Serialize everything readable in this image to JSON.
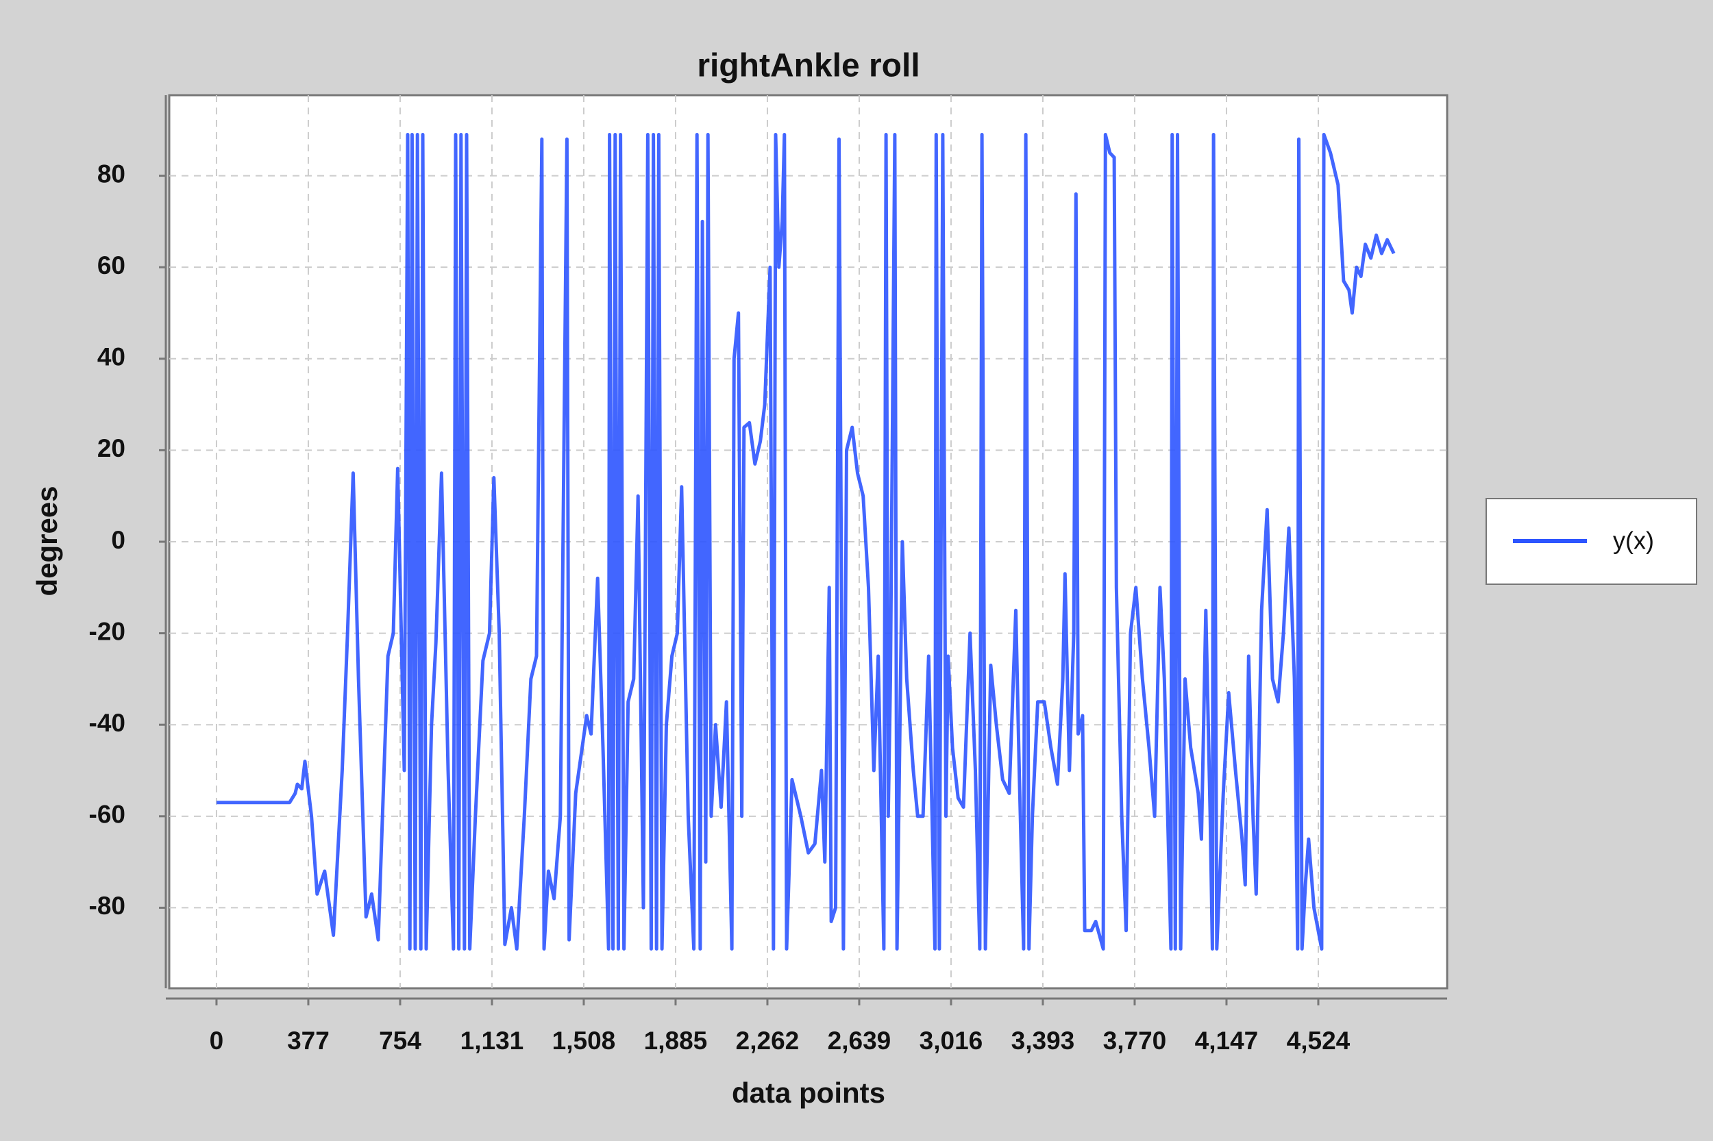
{
  "chart_data": {
    "type": "line",
    "title": "rightAnkle roll",
    "x_label": "data points",
    "y_label": "degrees",
    "xlim": [
      -194,
      5053
    ],
    "ylim": [
      -97.6,
      97.6
    ],
    "xticks": [
      0,
      377,
      754,
      {
        "value": 1131,
        "label": "1,131"
      },
      {
        "value": 1508,
        "label": "1,508"
      },
      {
        "value": 1885,
        "label": "1,885"
      },
      {
        "value": 2262,
        "label": "2,262"
      },
      {
        "value": 2639,
        "label": "2,639"
      },
      {
        "value": 3016,
        "label": "3,016"
      },
      {
        "value": 3393,
        "label": "3,393"
      },
      {
        "value": 3770,
        "label": "3,770"
      },
      {
        "value": 4147,
        "label": "4,147"
      },
      {
        "value": 4524,
        "label": "4,524"
      }
    ],
    "yticks": [
      -80,
      -60,
      -40,
      -20,
      0,
      20,
      40,
      60,
      80
    ],
    "grid": true,
    "legend": "right",
    "x": [
      0,
      300,
      323,
      332,
      350,
      363,
      390,
      413,
      444,
      480,
      516,
      538,
      561,
      583,
      614,
      637,
      664,
      704,
      726,
      744,
      771,
      785,
      794,
      803,
      816,
      825,
      839,
      847,
      861,
      883,
      901,
      924,
      951,
      973,
      982,
      995,
      1004,
      1018,
      1027,
      1040,
      1063,
      1094,
      1121,
      1139,
      1161,
      1184,
      1211,
      1233,
      1264,
      1291,
      1314,
      1336,
      1345,
      1363,
      1386,
      1412,
      1439,
      1448,
      1475,
      1520,
      1538,
      1565,
      1587,
      1610,
      1614,
      1628,
      1637,
      1650,
      1659,
      1673,
      1690,
      1713,
      1731,
      1753,
      1771,
      1785,
      1794,
      1807,
      1816,
      1829,
      1847,
      1870,
      1892,
      1910,
      1937,
      1960,
      1973,
      1986,
      1995,
      2009,
      2018,
      2031,
      2049,
      2072,
      2094,
      2116,
      2125,
      2143,
      2157,
      2166,
      2188,
      2211,
      2233,
      2251,
      2273,
      2287,
      2296,
      2309,
      2323,
      2332,
      2341,
      2363,
      2399,
      2430,
      2457,
      2484,
      2498,
      2516,
      2524,
      2542,
      2556,
      2574,
      2587,
      2610,
      2632,
      2655,
      2677,
      2699,
      2717,
      2740,
      2749,
      2758,
      2767,
      2785,
      2794,
      2816,
      2834,
      2861,
      2879,
      2901,
      2924,
      2950,
      2955,
      2968,
      2982,
      2995,
      3004,
      3022,
      3045,
      3067,
      3094,
      3116,
      3134,
      3143,
      3157,
      3179,
      3202,
      3228,
      3255,
      3282,
      3296,
      3314,
      3323,
      3336,
      3350,
      3372,
      3399,
      3426,
      3453,
      3475,
      3484,
      3502,
      3520,
      3529,
      3538,
      3556,
      3565,
      3592,
      3610,
      3641,
      3650,
      3668,
      3686,
      3695,
      3717,
      3735,
      3753,
      3775,
      3802,
      3829,
      3852,
      3874,
      3892,
      3919,
      3924,
      3937,
      3946,
      3959,
      3977,
      4000,
      4031,
      4044,
      4062,
      4080,
      4089,
      4094,
      4107,
      4134,
      4156,
      4184,
      4211,
      4224,
      4238,
      4256,
      4269,
      4291,
      4314,
      4336,
      4359,
      4381,
      4403,
      4426,
      4439,
      4444,
      4457,
      4471,
      4484,
      4506,
      4538,
      4547,
      4574,
      4605,
      4628,
      4650,
      4663,
      4681,
      4699,
      4717,
      4740,
      4762,
      4784,
      4807,
      4834
    ],
    "series": [
      {
        "name": "y(x)",
        "color": "#2d55ff",
        "values": [
          -57,
          -57,
          -55,
          -53,
          -54,
          -48,
          -60,
          -77,
          -72,
          -86,
          -50,
          -20,
          15,
          -30,
          -82,
          -77,
          -87,
          -25,
          -20,
          16,
          -50,
          89,
          -89,
          89,
          -89,
          89,
          -89,
          89,
          -89,
          -40,
          -22,
          15,
          -50,
          -89,
          89,
          -89,
          89,
          -89,
          89,
          -89,
          -60,
          -26,
          -20,
          14,
          -20,
          -88,
          -80,
          -89,
          -60,
          -30,
          -25,
          88,
          -89,
          -72,
          -78,
          -60,
          88,
          -87,
          -55,
          -38,
          -42,
          -8,
          -45,
          -89,
          89,
          -89,
          89,
          -89,
          89,
          -89,
          -35,
          -30,
          10,
          -80,
          89,
          -89,
          89,
          -89,
          89,
          -89,
          -40,
          -25,
          -20,
          12,
          -60,
          -89,
          89,
          -89,
          70,
          -70,
          89,
          -60,
          -40,
          -58,
          -35,
          -89,
          40,
          50,
          -60,
          25,
          26,
          17,
          22,
          30,
          60,
          -89,
          89,
          60,
          70,
          89,
          -89,
          -52,
          -60,
          -68,
          -66,
          -50,
          -70,
          -10,
          -83,
          -80,
          88,
          -89,
          20,
          25,
          15,
          10,
          -10,
          -50,
          -25,
          -89,
          89,
          -60,
          -30,
          89,
          -89,
          0,
          -30,
          -50,
          -60,
          -60,
          -25,
          -89,
          89,
          -89,
          89,
          -60,
          -25,
          -45,
          -56,
          -58,
          -20,
          -50,
          -89,
          89,
          -89,
          -27,
          -40,
          -52,
          -55,
          -15,
          -50,
          -89,
          89,
          -89,
          -60,
          -35,
          -35,
          -45,
          -53,
          -30,
          -7,
          -50,
          -20,
          76,
          -42,
          -38,
          -85,
          -85,
          -83,
          -89,
          89,
          85,
          84,
          -10,
          -60,
          -85,
          -20,
          -10,
          -30,
          -45,
          -60,
          -10,
          -30,
          -89,
          89,
          -89,
          89,
          -89,
          -30,
          -45,
          -55,
          -65,
          -15,
          -60,
          -89,
          89,
          -89,
          -55,
          -33,
          -50,
          -65,
          -75,
          -25,
          -60,
          -77,
          -15,
          7,
          -30,
          -35,
          -20,
          3,
          -30,
          -89,
          88,
          -89,
          -75,
          -65,
          -80,
          -89,
          89,
          85,
          78,
          57,
          55,
          50,
          60,
          58,
          65,
          62,
          67,
          63,
          66,
          63
        ]
      }
    ]
  }
}
